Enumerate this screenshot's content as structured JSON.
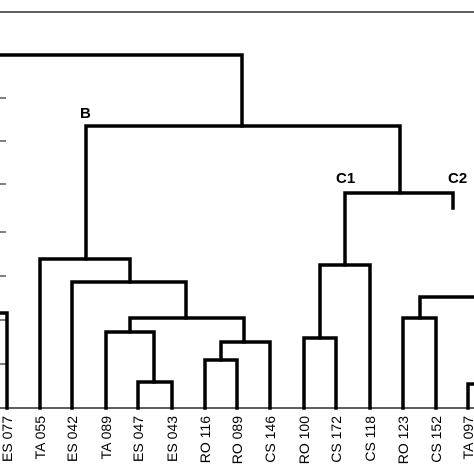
{
  "dendrogram": {
    "cluster_labels": {
      "b": "B",
      "c1": "C1",
      "c2": "C2"
    },
    "leaves": [
      "ES 077",
      "TA 055",
      "ES 042",
      "TA 089",
      "ES 047",
      "ES 043",
      "RO 116",
      "RO 089",
      "CS 146",
      "RO 100",
      "CS 172",
      "CS 118",
      "RO 123",
      "CS 152",
      "TA 097"
    ]
  }
}
